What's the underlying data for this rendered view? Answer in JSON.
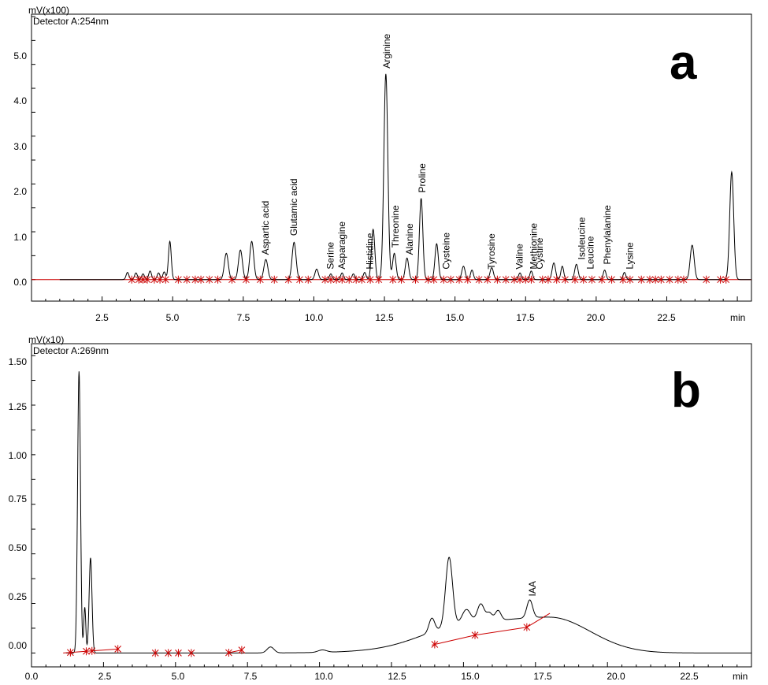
{
  "colors": {
    "trace": "#000000",
    "baseline": "#cc0000",
    "marker": "#cc0000",
    "axis": "#000000"
  },
  "panels": [
    {
      "panel_label": "a",
      "unit_label": "mV(x100)",
      "detector_label": "Detector A:254nm",
      "x_unit": "min",
      "x_ticks": [
        "2.5",
        "5.0",
        "7.5",
        "10.0",
        "12.5",
        "15.0",
        "17.5",
        "20.0",
        "22.5"
      ],
      "y_ticks": [
        "0.0",
        "1.0",
        "2.0",
        "3.0",
        "4.0",
        "5.0"
      ]
    },
    {
      "panel_label": "b",
      "unit_label": "mV(x10)",
      "detector_label": "Detector A:269nm",
      "x_unit": "min",
      "x_ticks": [
        "0.0",
        "2.5",
        "5.0",
        "7.5",
        "10.0",
        "12.5",
        "15.0",
        "17.5",
        "20.0",
        "22.5"
      ],
      "y_ticks": [
        "0.00",
        "0.25",
        "0.50",
        "0.75",
        "1.00",
        "1.25",
        "1.50"
      ]
    }
  ],
  "chart_data": [
    {
      "type": "line",
      "title": "a",
      "unit": "mV(x100)",
      "detector": "Detector A:254nm",
      "xlabel": "min",
      "xlim": [
        0.0,
        25.5
      ],
      "ylim": [
        -0.45,
        5.55
      ],
      "grid": false,
      "trace_start": 1.0,
      "peaks": [
        {
          "x": 3.4,
          "h": 0.15,
          "w": 0.05
        },
        {
          "x": 3.7,
          "h": 0.14,
          "w": 0.05
        },
        {
          "x": 3.95,
          "h": 0.12,
          "w": 0.05
        },
        {
          "x": 4.2,
          "h": 0.18,
          "w": 0.05
        },
        {
          "x": 4.5,
          "h": 0.14,
          "w": 0.05
        },
        {
          "x": 4.7,
          "h": 0.16,
          "w": 0.05
        },
        {
          "x": 4.9,
          "h": 0.8,
          "w": 0.05
        },
        {
          "x": 6.9,
          "h": 0.55,
          "w": 0.07
        },
        {
          "x": 7.4,
          "h": 0.62,
          "w": 0.07
        },
        {
          "x": 7.8,
          "h": 0.8,
          "w": 0.07
        },
        {
          "x": 8.3,
          "h": 0.42,
          "w": 0.07
        },
        {
          "x": 9.3,
          "h": 0.78,
          "w": 0.07
        },
        {
          "x": 10.1,
          "h": 0.22,
          "w": 0.06
        },
        {
          "x": 10.6,
          "h": 0.12,
          "w": 0.05
        },
        {
          "x": 11.0,
          "h": 0.14,
          "w": 0.05
        },
        {
          "x": 11.4,
          "h": 0.12,
          "w": 0.05
        },
        {
          "x": 11.8,
          "h": 0.15,
          "w": 0.05
        },
        {
          "x": 12.1,
          "h": 1.05,
          "w": 0.06
        },
        {
          "x": 12.55,
          "h": 4.3,
          "w": 0.07
        },
        {
          "x": 12.85,
          "h": 0.55,
          "w": 0.06
        },
        {
          "x": 13.3,
          "h": 0.45,
          "w": 0.06
        },
        {
          "x": 13.8,
          "h": 1.7,
          "w": 0.06
        },
        {
          "x": 14.35,
          "h": 0.75,
          "w": 0.06
        },
        {
          "x": 15.3,
          "h": 0.28,
          "w": 0.06
        },
        {
          "x": 15.6,
          "h": 0.2,
          "w": 0.05
        },
        {
          "x": 16.3,
          "h": 0.25,
          "w": 0.06
        },
        {
          "x": 17.3,
          "h": 0.14,
          "w": 0.05
        },
        {
          "x": 17.7,
          "h": 0.18,
          "w": 0.05
        },
        {
          "x": 18.5,
          "h": 0.35,
          "w": 0.06
        },
        {
          "x": 18.8,
          "h": 0.28,
          "w": 0.05
        },
        {
          "x": 19.3,
          "h": 0.32,
          "w": 0.06
        },
        {
          "x": 20.3,
          "h": 0.2,
          "w": 0.05
        },
        {
          "x": 21.0,
          "h": 0.15,
          "w": 0.05
        },
        {
          "x": 23.4,
          "h": 0.72,
          "w": 0.07
        },
        {
          "x": 24.8,
          "h": 2.25,
          "w": 0.07
        }
      ],
      "annotations": [
        {
          "text": "Aspartic acid",
          "x": 8.4,
          "y": 0.45
        },
        {
          "text": "Glutamic acid",
          "x": 9.4,
          "y": 0.85
        },
        {
          "text": "Serine",
          "x": 10.7,
          "y": 0.15
        },
        {
          "text": "Asparagine",
          "x": 11.1,
          "y": 0.15
        },
        {
          "text": "Histidine",
          "x": 12.1,
          "y": 0.15
        },
        {
          "text": "Arginine",
          "x": 12.7,
          "y": 4.35
        },
        {
          "text": "Threonine",
          "x": 13.0,
          "y": 0.6
        },
        {
          "text": "Alanine",
          "x": 13.5,
          "y": 0.45
        },
        {
          "text": "Proline",
          "x": 13.95,
          "y": 1.75
        },
        {
          "text": "Cysteine",
          "x": 14.8,
          "y": 0.15
        },
        {
          "text": "Tyrosine",
          "x": 16.4,
          "y": 0.15
        },
        {
          "text": "Valine",
          "x": 17.4,
          "y": 0.15
        },
        {
          "text": "Methionine",
          "x": 17.9,
          "y": 0.15
        },
        {
          "text": "Cystine",
          "x": 18.1,
          "y": 0.15
        },
        {
          "text": "Isoleucine",
          "x": 19.6,
          "y": 0.35
        },
        {
          "text": "Leucine",
          "x": 19.9,
          "y": 0.15
        },
        {
          "text": "Phenylalanine",
          "x": 20.5,
          "y": 0.25
        },
        {
          "text": "Lysine",
          "x": 21.3,
          "y": 0.15
        }
      ],
      "markers": [
        3.55,
        3.8,
        3.95,
        4.1,
        4.35,
        4.55,
        4.75,
        5.2,
        5.5,
        5.8,
        6.0,
        6.3,
        6.6,
        7.1,
        7.6,
        8.1,
        8.6,
        9.1,
        9.5,
        9.8,
        10.4,
        10.6,
        10.8,
        11.0,
        11.25,
        11.5,
        11.7,
        12.0,
        12.3,
        12.8,
        13.1,
        13.6,
        14.05,
        14.25,
        14.6,
        14.85,
        15.15,
        15.45,
        15.85,
        16.15,
        16.5,
        16.8,
        17.1,
        17.3,
        17.5,
        17.7,
        18.1,
        18.3,
        18.6,
        18.9,
        19.25,
        19.55,
        19.85,
        20.2,
        20.55,
        20.95,
        21.2,
        21.6,
        21.9,
        22.1,
        22.3,
        22.6,
        22.9,
        23.1,
        23.9,
        24.4,
        24.6
      ]
    },
    {
      "type": "line",
      "title": "b",
      "unit": "mV(x10)",
      "detector": "Detector A:269nm",
      "xlabel": "min",
      "xlim": [
        0.0,
        25.0
      ],
      "ylim": [
        -0.07,
        1.56
      ],
      "grid": false,
      "trace_start": 1.2,
      "broad": [
        {
          "x": 18.0,
          "h": 0.18,
          "sl": 2.8,
          "sr": 1.4
        },
        {
          "x": 14.5,
          "h": 0.05,
          "w": 1.2
        }
      ],
      "peaks": [
        {
          "x": 1.65,
          "h": 1.42,
          "w": 0.05
        },
        {
          "x": 1.85,
          "h": 0.23,
          "w": 0.035
        },
        {
          "x": 2.05,
          "h": 0.48,
          "w": 0.05
        },
        {
          "x": 8.3,
          "h": 0.03,
          "w": 0.12
        },
        {
          "x": 10.1,
          "h": 0.012,
          "w": 0.15
        },
        {
          "x": 13.9,
          "h": 0.07,
          "w": 0.1
        },
        {
          "x": 14.5,
          "h": 0.35,
          "w": 0.12
        },
        {
          "x": 15.1,
          "h": 0.07,
          "w": 0.15
        },
        {
          "x": 15.6,
          "h": 0.09,
          "w": 0.12
        },
        {
          "x": 15.9,
          "h": 0.04,
          "w": 0.1
        },
        {
          "x": 16.2,
          "h": 0.05,
          "w": 0.1
        },
        {
          "x": 17.3,
          "h": 0.09,
          "w": 0.1
        }
      ],
      "annotations": [
        {
          "text": "IAA",
          "x": 17.5,
          "y": 0.27
        }
      ],
      "markers": [
        1.35,
        1.9,
        2.1,
        3.0,
        4.3,
        4.75,
        5.1,
        5.55,
        6.85,
        7.3,
        14.0,
        15.4,
        17.2
      ],
      "baselines": [
        [
          1.1,
          0.0,
          3.0,
          0.02
        ],
        [
          6.8,
          0.0,
          7.3,
          0.015
        ],
        [
          13.9,
          0.04,
          15.4,
          0.09
        ],
        [
          15.4,
          0.09,
          17.2,
          0.13
        ],
        [
          17.2,
          0.13,
          18.0,
          0.2
        ]
      ]
    }
  ]
}
